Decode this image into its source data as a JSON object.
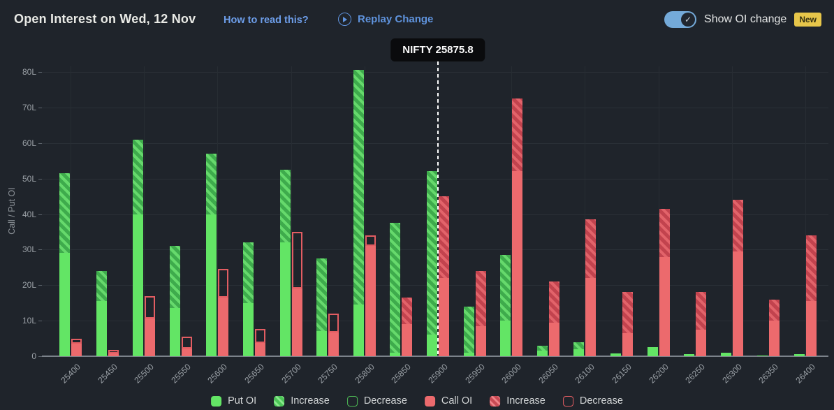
{
  "header": {
    "title": "Open Interest on Wed, 12 Nov",
    "how_to_read": "How to read this?",
    "replay_label": "Replay Change",
    "toggle_label": "Show OI change",
    "toggle_state": "on",
    "new_badge": "New"
  },
  "marker": {
    "label": "NIFTY 25875.8",
    "strike_index": 10
  },
  "legend": [
    {
      "label": "Put OI",
      "swatch": "put-solid"
    },
    {
      "label": "Increase",
      "swatch": "put-inc"
    },
    {
      "label": "Decrease",
      "swatch": "put-dec"
    },
    {
      "label": "Call OI",
      "swatch": "call-solid"
    },
    {
      "label": "Increase",
      "swatch": "call-inc"
    },
    {
      "label": "Decrease",
      "swatch": "call-dec"
    }
  ],
  "colors": {
    "background": "#1f242b",
    "put_solid": "#63e565",
    "put_increase_stripe": "#66d96c",
    "call_solid": "#ec6a6d",
    "call_increase_stripe": "#e2636a",
    "decrease_outline_red": "#e25d62",
    "decrease_outline_green": "#4db854",
    "link_blue": "#6d9eea",
    "replay_blue": "#5f93dd",
    "toggle_blue": "#74aad9",
    "badge_yellow": "#e7c64a",
    "marker_white": "#ffffff"
  },
  "chart_data": {
    "type": "bar",
    "unit": "L (lakh)",
    "ylabel": "Call / Put OI",
    "ylim": [
      0,
      81.6
    ],
    "yticks": [
      "0",
      "10L",
      "20L",
      "30L",
      "40L",
      "50L",
      "60L",
      "70L",
      "80L"
    ],
    "grid": "horizontal 10L steps, vertical at 100-point strikes",
    "legend_position": "bottom-center",
    "categories": [
      "25400",
      "25450",
      "25500",
      "25550",
      "25600",
      "25650",
      "25700",
      "25750",
      "25800",
      "25850",
      "25900",
      "25950",
      "26000",
      "26050",
      "26100",
      "26150",
      "26200",
      "26250",
      "26300",
      "26350",
      "26400"
    ],
    "bars": [
      {
        "strike": "25400",
        "put_total": 51.5,
        "put_solid": 29,
        "call_solid": 4,
        "call_total": 4,
        "call_outline_top": 5
      },
      {
        "strike": "25450",
        "put_total": 24,
        "put_solid": 15.5,
        "call_solid": 1.2,
        "call_total": 1.2,
        "call_outline_top": 1.8
      },
      {
        "strike": "25500",
        "put_total": 61,
        "put_solid": 40,
        "call_solid": 11,
        "call_total": 11,
        "call_outline_top": 17
      },
      {
        "strike": "25550",
        "put_total": 31,
        "put_solid": 13.5,
        "call_solid": 2.5,
        "call_total": 2.5,
        "call_outline_top": 5.5
      },
      {
        "strike": "25600",
        "put_total": 57,
        "put_solid": 40,
        "call_solid": 17,
        "call_total": 17,
        "call_outline_top": 24.5
      },
      {
        "strike": "25650",
        "put_total": 32,
        "put_solid": 15,
        "call_solid": 4.2,
        "call_total": 4.2,
        "call_outline_top": 7.7
      },
      {
        "strike": "25700",
        "put_total": 52.5,
        "put_solid": 32,
        "call_solid": 19.5,
        "call_total": 19.5,
        "call_outline_top": 35
      },
      {
        "strike": "25750",
        "put_total": 27.5,
        "put_solid": 7,
        "call_solid": 7,
        "call_total": 7,
        "call_outline_top": 12
      },
      {
        "strike": "25800",
        "put_total": 80.5,
        "put_solid": 14.5,
        "call_solid": 31.5,
        "call_total": 31.5,
        "call_outline_top": 34
      },
      {
        "strike": "25850",
        "put_total": 37.5,
        "put_solid": 1,
        "call_solid": 9,
        "call_total": 16.5,
        "call_outline_top": null
      },
      {
        "strike": "25900",
        "put_total": 52,
        "put_solid": 6,
        "call_solid": 22,
        "call_total": 45,
        "call_outline_top": null
      },
      {
        "strike": "25950",
        "put_total": 14,
        "put_solid": 1,
        "call_solid": 8.5,
        "call_total": 24,
        "call_outline_top": null
      },
      {
        "strike": "26000",
        "put_total": 28.5,
        "put_solid": 10,
        "call_solid": 52,
        "call_total": 72.5,
        "call_outline_top": null
      },
      {
        "strike": "26050",
        "put_total": 3,
        "put_solid": 1.5,
        "call_solid": 9.5,
        "call_total": 21,
        "call_outline_top": null
      },
      {
        "strike": "26100",
        "put_total": 4,
        "put_solid": 2,
        "call_solid": 22,
        "call_total": 38.5,
        "call_outline_top": null
      },
      {
        "strike": "26150",
        "put_total": 0.8,
        "put_solid": 0.8,
        "call_solid": 6.5,
        "call_total": 18,
        "call_outline_top": null
      },
      {
        "strike": "26200",
        "put_total": 2.5,
        "put_solid": 2.5,
        "call_solid": 28,
        "call_total": 41.5,
        "call_outline_top": null
      },
      {
        "strike": "26250",
        "put_total": 0.5,
        "put_solid": 0.5,
        "call_solid": 7.5,
        "call_total": 18,
        "call_outline_top": null
      },
      {
        "strike": "26300",
        "put_total": 1,
        "put_solid": 1,
        "call_solid": 29.5,
        "call_total": 44,
        "call_outline_top": null
      },
      {
        "strike": "26350",
        "put_total": 0.2,
        "put_solid": 0.2,
        "call_solid": 10,
        "call_total": 16,
        "call_outline_top": null
      },
      {
        "strike": "26400",
        "put_total": 0.5,
        "put_solid": 0.5,
        "call_solid": 15.5,
        "call_total": 34,
        "call_outline_top": null
      }
    ],
    "bar_semantics": "put_solid/call_solid = solid fill; put_total-put_solid and call_total-call_solid = hatched 'Increase' section; call_outline_top = top of hollow 'Decrease' outline drawn above the solid bar"
  }
}
